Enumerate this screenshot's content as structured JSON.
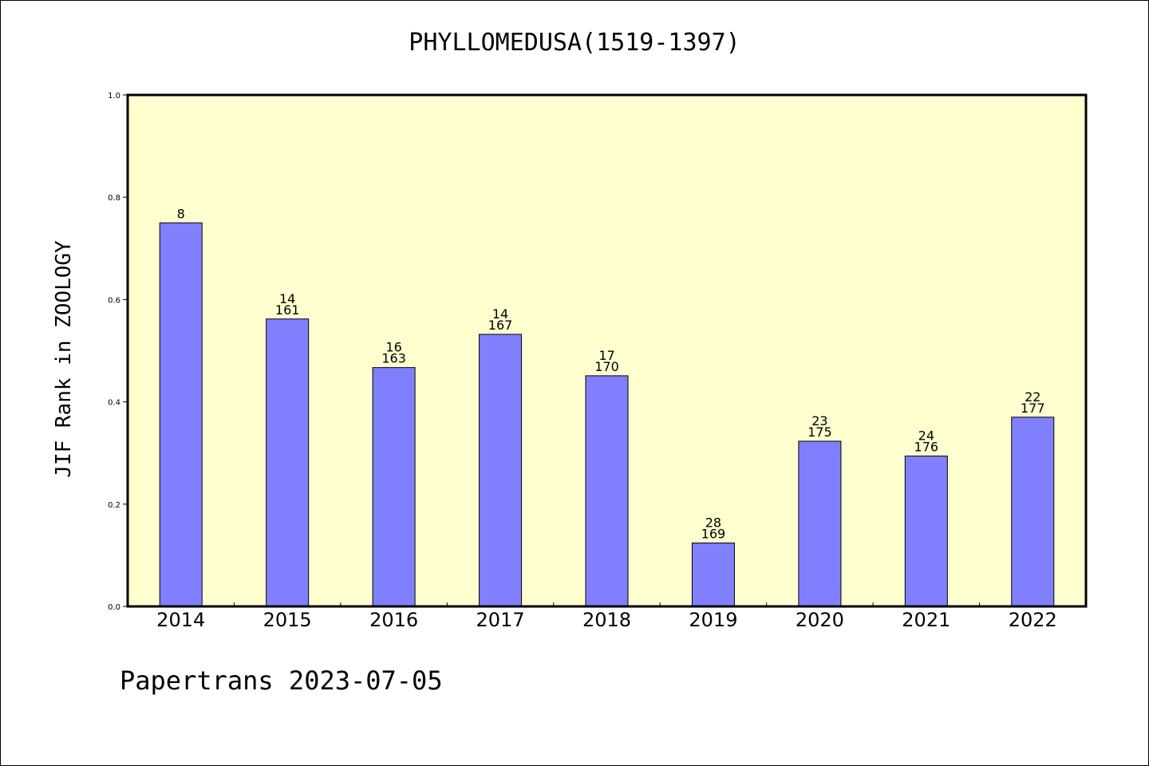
{
  "chart_data": {
    "type": "bar",
    "title": "PHYLLOMEDUSA(1519-1397)",
    "xlabel": "",
    "ylabel": "JIF Rank in ZOOLOGY",
    "ylim": [
      0,
      1.0
    ],
    "yticks": [
      "0.0",
      "0.2",
      "0.4",
      "0.6",
      "0.8",
      "1.0"
    ],
    "categories": [
      "2014",
      "2015",
      "2016",
      "2017",
      "2018",
      "2019",
      "2020",
      "2021",
      "2022"
    ],
    "values": [
      0.75,
      0.562,
      0.467,
      0.532,
      0.451,
      0.124,
      0.323,
      0.294,
      0.37
    ],
    "labels": [
      [
        "8"
      ],
      [
        "14",
        "161"
      ],
      [
        "16",
        "163"
      ],
      [
        "14",
        "167"
      ],
      [
        "17",
        "170"
      ],
      [
        "28",
        "169"
      ],
      [
        "23",
        "175"
      ],
      [
        "24",
        "176"
      ],
      [
        "22",
        "177"
      ]
    ],
    "colors": {
      "bar": "#8080ff",
      "plot_bg": "#ffffd0"
    },
    "grid": false,
    "footer": "Papertrans 2023-07-05"
  }
}
